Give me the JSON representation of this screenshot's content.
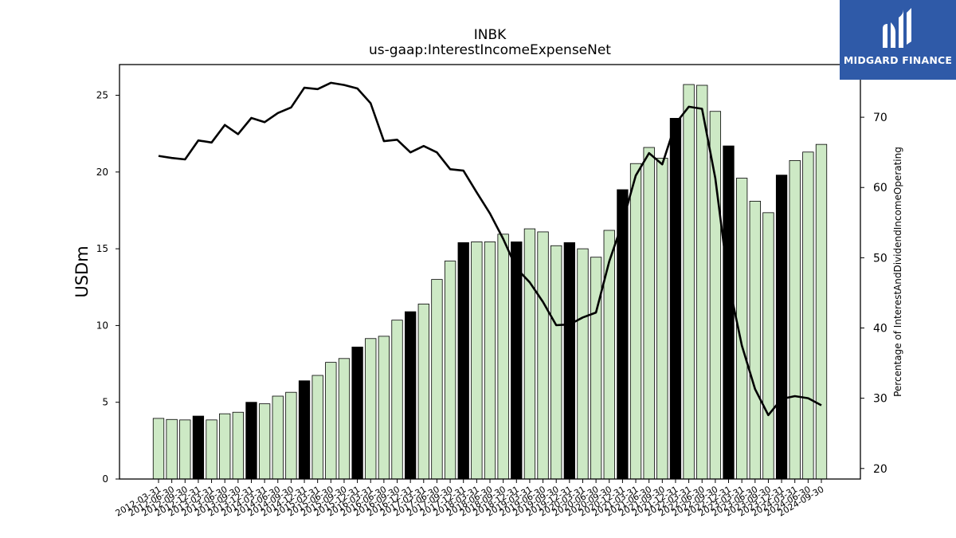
{
  "title": "INBK",
  "subtitle": "us-gaap:InterestIncomeExpenseNet",
  "logo": {
    "text": "MIDGARD FINANCE",
    "color": "#2f5aa8"
  },
  "chart_data": {
    "type": "bar",
    "title": "INBK",
    "subtitle": "us-gaap:InterestIncomeExpenseNet",
    "ylabel": "USDm",
    "ylabel_right": "Percentage of InterestAndDividendIncomeOperating",
    "ylim": [
      0,
      27
    ],
    "ylim_right": [
      18.5,
      77.5
    ],
    "yticks": [
      0,
      5,
      10,
      15,
      20,
      25
    ],
    "yticks_right": [
      20,
      30,
      40,
      50,
      60,
      70
    ],
    "colors": {
      "bar": "#cde9c5",
      "bar_highlight": "#000000",
      "line": "#000000"
    },
    "categories": [
      "2012-03-31",
      "2012-06-30",
      "2012-09-30",
      "2012-12-31",
      "2013-03-31",
      "2013-06-30",
      "2013-09-30",
      "2013-12-31",
      "2014-03-31",
      "2014-06-30",
      "2014-09-30",
      "2014-12-31",
      "2015-03-31",
      "2015-06-30",
      "2015-09-30",
      "2015-12-31",
      "2016-03-31",
      "2016-06-30",
      "2016-09-30",
      "2016-12-31",
      "2017-03-31",
      "2017-06-30",
      "2017-09-30",
      "2017-12-31",
      "2018-03-31",
      "2018-06-30",
      "2018-09-30",
      "2018-12-31",
      "2019-03-31",
      "2019-06-30",
      "2019-09-30",
      "2019-12-31",
      "2020-03-31",
      "2020-06-30",
      "2020-09-30",
      "2020-12-31",
      "2021-03-31",
      "2021-06-30",
      "2021-09-30",
      "2021-12-31",
      "2022-03-31",
      "2022-06-30",
      "2022-09-30",
      "2022-12-31",
      "2023-03-31",
      "2023-06-30",
      "2023-09-30",
      "2023-12-31",
      "2024-03-31",
      "2024-06-30",
      "2024-09-30"
    ],
    "xtick_labels": [
      "2012-03-31",
      "2012-06-30",
      "2012-09-30",
      "2012-12-31",
      "2013-03-31",
      "2013-06-30",
      "2013-09-30",
      "2013-12-31",
      "2014-03-31",
      "2014-06-30",
      "2014-09-30",
      "2014-12-31",
      "2015-03-31",
      "2015-06-30",
      "2015-09-30",
      "2015-12-31",
      "2016-03-31",
      "2016-06-30",
      "2016-09-30",
      "2016-12-31",
      "2017-03-31",
      "2017-06-30",
      "2017-09-30",
      "2017-12-31",
      "2018-03-31",
      "2018-06-30",
      "2018-09-30",
      "2018-12-31",
      "2019-03-31",
      "2019-06-30",
      "2019-09-30",
      "2019-12-31",
      "2020-03-31",
      "2020-06-30",
      "2020-09-30",
      "2020-12-31",
      "2021-03-31",
      "2021-06-30",
      "2021-09-30",
      "2021-12-31",
      "2022-03-31",
      "2022-06-30",
      "2022-09-30",
      "2022-12-31",
      "2023-03-31",
      "2023-06-30",
      "2023-09-30",
      "2023-12-31",
      "2024-03-31",
      "2024-06-30",
      "2024-09-30"
    ],
    "series": [
      {
        "kind": "bar",
        "axis": "left",
        "values": [
          3.95,
          3.88,
          3.85,
          4.1,
          3.85,
          4.25,
          4.35,
          5.0,
          4.9,
          5.4,
          5.65,
          6.4,
          6.75,
          7.6,
          7.85,
          8.6,
          9.15,
          9.3,
          10.35,
          10.9,
          11.4,
          13.0,
          14.2,
          15.4,
          15.45,
          15.45,
          15.95,
          15.45,
          16.3,
          16.1,
          15.2,
          15.4,
          15.0,
          14.45,
          16.2,
          18.85,
          20.55,
          21.6,
          20.9,
          23.5,
          25.7,
          25.65,
          23.95,
          21.7,
          19.6,
          18.1,
          17.35,
          19.8,
          20.75,
          21.3,
          21.8
        ],
        "highlight": [
          false,
          false,
          false,
          true,
          false,
          false,
          false,
          true,
          false,
          false,
          false,
          true,
          false,
          false,
          false,
          true,
          false,
          false,
          false,
          true,
          false,
          false,
          false,
          true,
          false,
          false,
          false,
          true,
          false,
          false,
          false,
          true,
          false,
          false,
          false,
          true,
          false,
          false,
          false,
          true,
          false,
          false,
          false,
          true,
          false,
          false,
          false,
          true,
          false,
          false,
          false
        ]
      },
      {
        "kind": "line",
        "axis": "right",
        "values": [
          64.5,
          64.2,
          64.0,
          66.7,
          66.4,
          68.9,
          67.6,
          69.9,
          69.3,
          70.6,
          71.4,
          74.2,
          74.0,
          74.9,
          74.6,
          74.1,
          72.0,
          66.6,
          66.8,
          65.0,
          65.9,
          65.0,
          62.6,
          62.4,
          59.3,
          56.3,
          52.7,
          48.5,
          46.5,
          43.7,
          40.4,
          40.5,
          41.5,
          42.2,
          49.5,
          55.0,
          61.7,
          64.9,
          63.3,
          69.1,
          71.5,
          71.2,
          61.3,
          46.5,
          37.5,
          31.3,
          27.6,
          29.9,
          30.3,
          30.0,
          29.0
        ]
      }
    ]
  }
}
